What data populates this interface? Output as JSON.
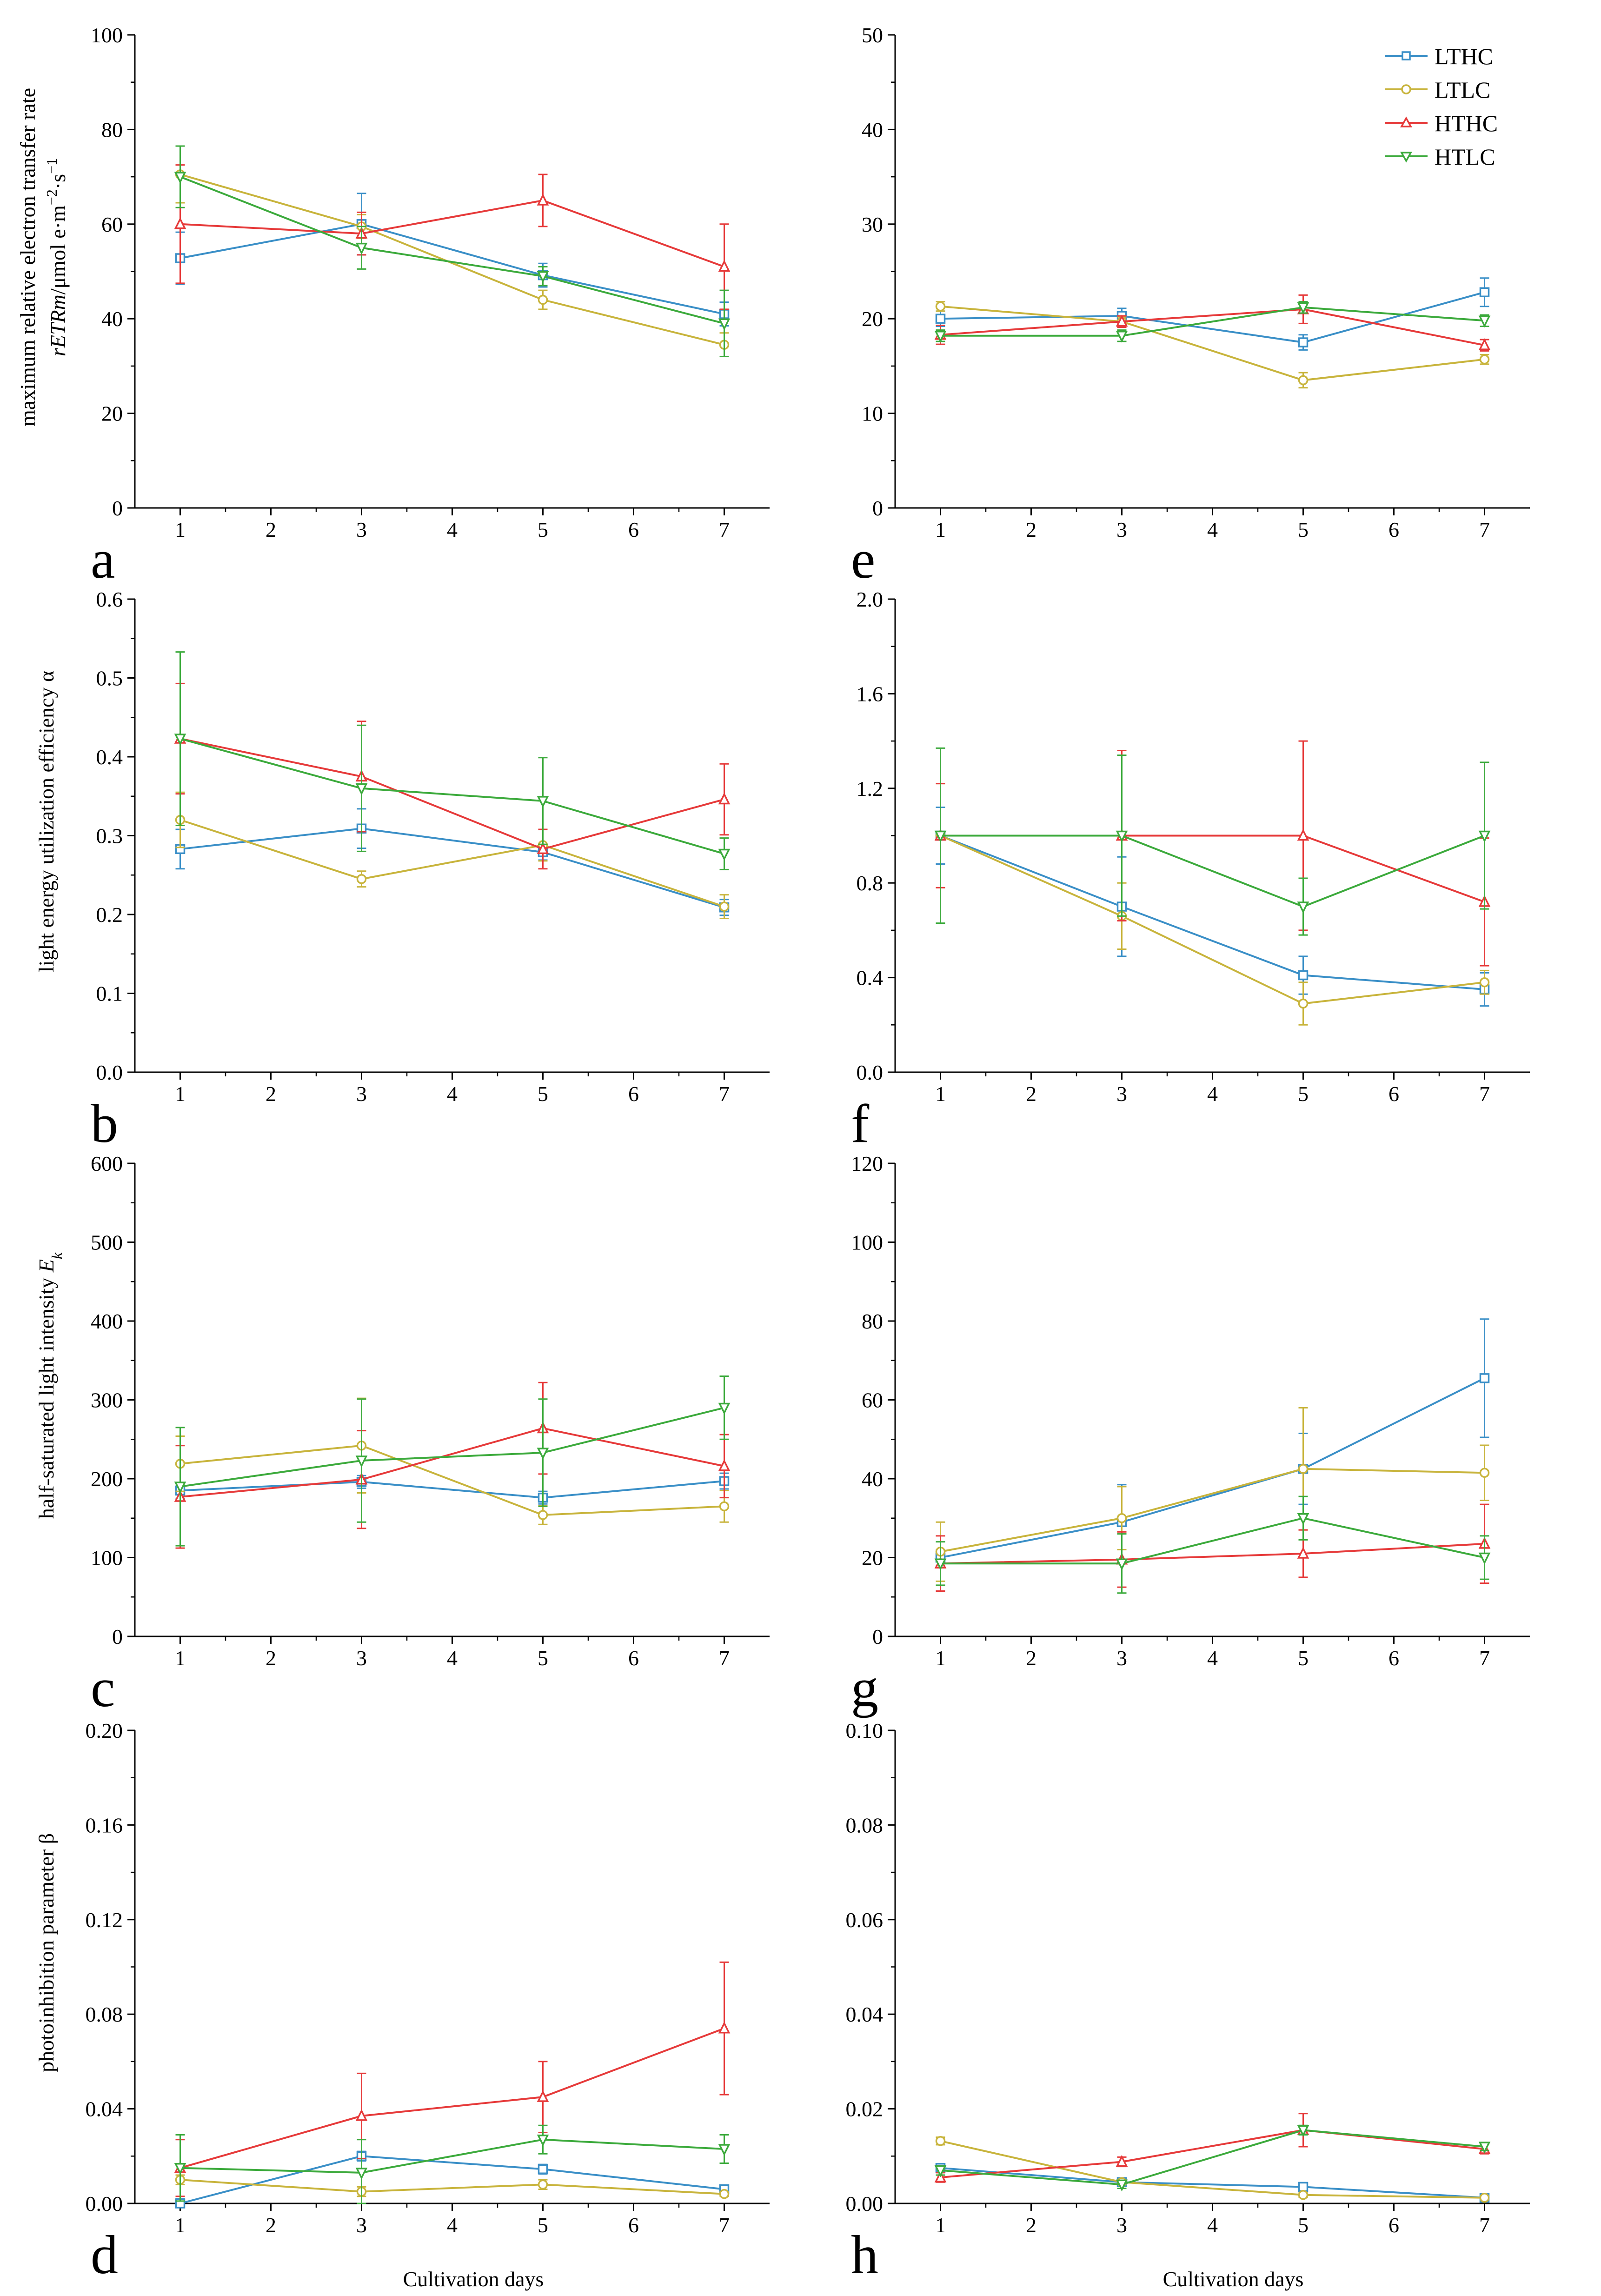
{
  "figure": {
    "xlabel": "Cultivation days",
    "legend": [
      "LTHC",
      "LTLC",
      "HTHC",
      "HTLC"
    ],
    "colors": {
      "LTHC": "#3a8fc7",
      "LTLC": "#c8b43c",
      "HTHC": "#e63a3a",
      "HTLC": "#3caa3c"
    },
    "markers": {
      "LTHC": "square",
      "LTLC": "circle",
      "HTHC": "triangle-up",
      "HTLC": "triangle-down"
    },
    "ylabels": {
      "a_line1": "maximum relative electron transfer rate",
      "a_line2_italic": "rETRm",
      "a_line2_rest": "/μmol e·m",
      "a_sup1": "−2",
      "a_mid": "·s",
      "a_sup2": "−1",
      "b": "light energy utilization efficiency α",
      "c_main": "half-saturated light intensity ",
      "c_italic": "E",
      "c_sub": "k",
      "d": "photoinhibition parameter β"
    }
  },
  "chart_data": [
    {
      "id": "a",
      "label": "a",
      "type": "line",
      "x": [
        1,
        3,
        5,
        7
      ],
      "xlim": [
        0.5,
        7.5
      ],
      "xticks": [
        1,
        2,
        3,
        4,
        5,
        6,
        7
      ],
      "ylim": [
        0,
        100
      ],
      "yticks": [
        "0",
        "20",
        "40",
        "60",
        "80",
        "100"
      ],
      "series": [
        {
          "name": "LTHC",
          "values": [
            52.8,
            60.0,
            49.2,
            41.0
          ],
          "errors": [
            5.5,
            6.5,
            2.5,
            2.5
          ]
        },
        {
          "name": "LTLC",
          "values": [
            70.5,
            59.5,
            44.0,
            34.5
          ],
          "errors": [
            6.0,
            2.5,
            2.0,
            2.5
          ]
        },
        {
          "name": "HTHC",
          "values": [
            60.0,
            58.0,
            65.0,
            51.0
          ],
          "errors": [
            12.5,
            4.5,
            5.5,
            9.0
          ]
        },
        {
          "name": "HTLC",
          "values": [
            70.0,
            55.0,
            49.0,
            39.0
          ],
          "errors": [
            6.5,
            4.5,
            2.0,
            7.0
          ]
        }
      ]
    },
    {
      "id": "e",
      "label": "e",
      "type": "line",
      "x": [
        1,
        3,
        5,
        7
      ],
      "xlim": [
        0.5,
        7.5
      ],
      "xticks": [
        1,
        2,
        3,
        4,
        5,
        6,
        7
      ],
      "ylim": [
        0,
        50
      ],
      "yticks": [
        "0",
        "10",
        "20",
        "30",
        "40",
        "50"
      ],
      "series": [
        {
          "name": "LTHC",
          "values": [
            20.0,
            20.3,
            17.5,
            22.8
          ],
          "errors": [
            0.8,
            0.8,
            0.8,
            1.5
          ]
        },
        {
          "name": "LTLC",
          "values": [
            21.3,
            19.7,
            13.5,
            15.7
          ],
          "errors": [
            0.5,
            0.5,
            0.8,
            0.5
          ]
        },
        {
          "name": "HTHC",
          "values": [
            18.3,
            19.7,
            21.0,
            17.2
          ],
          "errors": [
            1.0,
            0.6,
            1.5,
            0.6
          ]
        },
        {
          "name": "HTLC",
          "values": [
            18.2,
            18.2,
            21.2,
            19.8
          ],
          "errors": [
            0.6,
            0.6,
            0.6,
            0.6
          ]
        }
      ]
    },
    {
      "id": "b",
      "label": "b",
      "type": "line",
      "x": [
        1,
        3,
        5,
        7
      ],
      "xlim": [
        0.5,
        7.5
      ],
      "xticks": [
        1,
        2,
        3,
        4,
        5,
        6,
        7
      ],
      "ylim": [
        0,
        0.6
      ],
      "yticks": [
        "0.0",
        "0.1",
        "0.2",
        "0.3",
        "0.4",
        "0.5",
        "0.6"
      ],
      "series": [
        {
          "name": "LTHC",
          "values": [
            0.283,
            0.309,
            0.279,
            0.209
          ],
          "errors": [
            0.025,
            0.025,
            0.01,
            0.01
          ]
        },
        {
          "name": "LTLC",
          "values": [
            0.32,
            0.245,
            0.288,
            0.21
          ],
          "errors": [
            0.035,
            0.01,
            0.02,
            0.015
          ]
        },
        {
          "name": "HTHC",
          "values": [
            0.423,
            0.375,
            0.283,
            0.346
          ],
          "errors": [
            0.07,
            0.07,
            0.025,
            0.045
          ]
        },
        {
          "name": "HTLC",
          "values": [
            0.423,
            0.36,
            0.344,
            0.277
          ],
          "errors": [
            0.11,
            0.08,
            0.055,
            0.02
          ]
        }
      ]
    },
    {
      "id": "f",
      "label": "f",
      "type": "line",
      "x": [
        1,
        3,
        5,
        7
      ],
      "xlim": [
        0.5,
        7.5
      ],
      "xticks": [
        1,
        2,
        3,
        4,
        5,
        6,
        7
      ],
      "ylim": [
        0,
        2.0
      ],
      "yticks": [
        "0.0",
        "0.4",
        "0.8",
        "1.2",
        "1.6",
        "2.0"
      ],
      "series": [
        {
          "name": "LTHC",
          "values": [
            1.0,
            0.7,
            0.41,
            0.35
          ],
          "errors": [
            0.12,
            0.21,
            0.08,
            0.07
          ]
        },
        {
          "name": "LTLC",
          "values": [
            1.0,
            0.66,
            0.29,
            0.38
          ],
          "errors": [
            0.22,
            0.14,
            0.09,
            0.05
          ]
        },
        {
          "name": "HTHC",
          "values": [
            1.0,
            1.0,
            1.0,
            0.72
          ],
          "errors": [
            0.22,
            0.36,
            0.4,
            0.27
          ]
        },
        {
          "name": "HTLC",
          "values": [
            1.0,
            1.0,
            0.7,
            1.0
          ],
          "errors": [
            0.37,
            0.34,
            0.12,
            0.31
          ]
        }
      ]
    },
    {
      "id": "c",
      "label": "c",
      "type": "line",
      "x": [
        1,
        3,
        5,
        7
      ],
      "xlim": [
        0.5,
        7.5
      ],
      "xticks": [
        1,
        2,
        3,
        4,
        5,
        6,
        7
      ],
      "ylim": [
        0,
        600
      ],
      "yticks": [
        "0",
        "100",
        "200",
        "300",
        "400",
        "500",
        "600"
      ],
      "series": [
        {
          "name": "LTHC",
          "values": [
            185,
            196,
            176,
            197
          ],
          "errors": [
            10,
            8,
            8,
            10
          ]
        },
        {
          "name": "LTLC",
          "values": [
            219,
            242,
            154,
            165
          ],
          "errors": [
            35,
            60,
            12,
            20
          ]
        },
        {
          "name": "HTHC",
          "values": [
            177,
            199,
            264,
            216
          ],
          "errors": [
            65,
            62,
            58,
            40
          ]
        },
        {
          "name": "HTLC",
          "values": [
            190,
            223,
            233,
            290
          ],
          "errors": [
            75,
            78,
            68,
            40
          ]
        }
      ]
    },
    {
      "id": "g",
      "label": "g",
      "type": "line",
      "x": [
        1,
        3,
        5,
        7
      ],
      "xlim": [
        0.5,
        7.5
      ],
      "xticks": [
        1,
        2,
        3,
        4,
        5,
        6,
        7
      ],
      "ylim": [
        0,
        120
      ],
      "yticks": [
        "0",
        "20",
        "40",
        "60",
        "80",
        "100",
        "120"
      ],
      "series": [
        {
          "name": "LTHC",
          "values": [
            20.0,
            29.0,
            42.5,
            65.5
          ],
          "errors": [
            2.0,
            9.5,
            9.0,
            15.0
          ]
        },
        {
          "name": "LTLC",
          "values": [
            21.5,
            30.0,
            42.5,
            41.5
          ],
          "errors": [
            7.5,
            8.0,
            15.5,
            7.0
          ]
        },
        {
          "name": "HTHC",
          "values": [
            18.5,
            19.5,
            21.0,
            23.5
          ],
          "errors": [
            7.0,
            7.0,
            6.0,
            10.0
          ]
        },
        {
          "name": "HTLC",
          "values": [
            18.5,
            18.5,
            30.0,
            20.0
          ],
          "errors": [
            5.5,
            7.5,
            5.5,
            5.5
          ]
        }
      ]
    },
    {
      "id": "d",
      "label": "d",
      "type": "line",
      "x": [
        1,
        3,
        5,
        7
      ],
      "xlim": [
        0.5,
        7.5
      ],
      "xticks": [
        1,
        2,
        3,
        4,
        5,
        6,
        7
      ],
      "ylim": [
        0,
        0.2
      ],
      "yticks": [
        "0.00",
        "0.04",
        "0.08",
        "0.12",
        "0.16",
        "0.20"
      ],
      "series": [
        {
          "name": "LTHC",
          "values": [
            0.0,
            0.02,
            0.0145,
            0.006
          ],
          "errors": [
            0.002,
            0.002,
            0.002,
            0.001
          ]
        },
        {
          "name": "LTLC",
          "values": [
            0.01,
            0.005,
            0.008,
            0.004
          ],
          "errors": [
            0.002,
            0.002,
            0.002,
            0.001
          ]
        },
        {
          "name": "HTHC",
          "values": [
            0.015,
            0.037,
            0.045,
            0.074
          ],
          "errors": [
            0.012,
            0.018,
            0.015,
            0.028
          ]
        },
        {
          "name": "HTLC",
          "values": [
            0.015,
            0.013,
            0.027,
            0.023
          ],
          "errors": [
            0.014,
            0.014,
            0.006,
            0.006
          ]
        }
      ]
    },
    {
      "id": "h",
      "label": "h",
      "type": "line",
      "x": [
        1,
        3,
        5,
        7
      ],
      "xlim": [
        0.5,
        7.5
      ],
      "xticks": [
        1,
        2,
        3,
        4,
        5,
        6,
        7
      ],
      "ylim": [
        0,
        0.1
      ],
      "yticks": [
        "0.00",
        "0.02",
        "0.04",
        "0.06",
        "0.08",
        "0.10"
      ],
      "series": [
        {
          "name": "LTHC",
          "values": [
            0.0075,
            0.0045,
            0.0035,
            0.0012
          ],
          "errors": [
            0.0008,
            0.0008,
            0.0008,
            0.0004
          ]
        },
        {
          "name": "LTLC",
          "values": [
            0.0132,
            0.0045,
            0.0018,
            0.0012
          ],
          "errors": [
            0.0008,
            0.0005,
            0.0005,
            0.0004
          ]
        },
        {
          "name": "HTHC",
          "values": [
            0.0055,
            0.0088,
            0.0155,
            0.0115
          ],
          "errors": [
            0.001,
            0.001,
            0.0035,
            0.001
          ]
        },
        {
          "name": "HTLC",
          "values": [
            0.007,
            0.004,
            0.0155,
            0.012
          ],
          "errors": [
            0.001,
            0.0008,
            0.001,
            0.0008
          ]
        }
      ]
    }
  ]
}
